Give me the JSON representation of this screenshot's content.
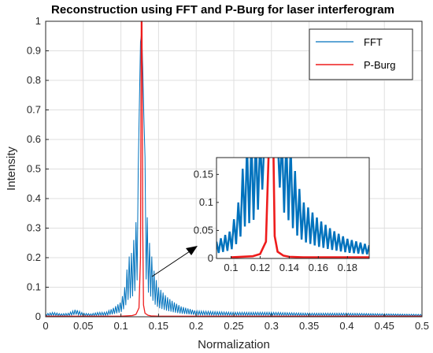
{
  "chart_data": {
    "type": "line",
    "title": "Reconstruction using FFT and P-Burg for laser interferogram",
    "xlabel": "Normalization",
    "ylabel": "Intensity",
    "xlim": [
      0,
      0.5
    ],
    "ylim": [
      0,
      1
    ],
    "xticks": [
      "0",
      "0.05",
      "0.1",
      "0.15",
      "0.2",
      "0.25",
      "0.3",
      "0.35",
      "0.4",
      "0.45",
      "0.5"
    ],
    "yticks": [
      "0",
      "0.1",
      "0.2",
      "0.3",
      "0.4",
      "0.5",
      "0.6",
      "0.7",
      "0.8",
      "0.9",
      "1"
    ],
    "grid": true,
    "legend_position": "top-right",
    "series": [
      {
        "name": "FFT",
        "color": "#0072BD",
        "x": [
          0,
          0.01,
          0.02,
          0.03,
          0.04,
          0.05,
          0.06,
          0.07,
          0.08,
          0.09,
          0.1,
          0.105,
          0.11,
          0.115,
          0.12,
          0.123,
          0.126,
          0.128,
          0.13,
          0.133,
          0.136,
          0.14,
          0.145,
          0.15,
          0.16,
          0.17,
          0.18,
          0.2,
          0.25,
          0.3,
          0.35,
          0.4,
          0.45,
          0.5
        ],
        "y": [
          0.01,
          0.015,
          0.01,
          0.012,
          0.025,
          0.012,
          0.01,
          0.015,
          0.015,
          0.03,
          0.05,
          0.1,
          0.2,
          0.22,
          0.32,
          0.5,
          0.93,
          0.97,
          0.72,
          0.45,
          0.28,
          0.22,
          0.14,
          0.1,
          0.07,
          0.05,
          0.035,
          0.02,
          0.015,
          0.015,
          0.012,
          0.012,
          0.01,
          0.008
        ]
      },
      {
        "name": "P-Burg",
        "color": "#EE1C1C",
        "x": [
          0,
          0.1,
          0.115,
          0.12,
          0.124,
          0.126,
          0.127,
          0.128,
          0.129,
          0.13,
          0.132,
          0.136,
          0.14,
          0.15,
          0.2,
          0.5
        ],
        "y": [
          0.002,
          0.002,
          0.004,
          0.008,
          0.03,
          0.2,
          1.0,
          1.0,
          0.3,
          0.04,
          0.012,
          0.005,
          0.003,
          0.002,
          0.002,
          0.002
        ]
      }
    ],
    "inset": {
      "xlim": [
        0.09,
        0.195
      ],
      "ylim": [
        0,
        0.18
      ],
      "xticks": [
        "0.1",
        "0.12",
        "0.14",
        "0.16",
        "0.18"
      ],
      "yticks": [
        "0",
        "0.05",
        "0.1",
        "0.15"
      ],
      "grid": false
    },
    "annotation": "arrow from the peak region to the zoomed inset"
  }
}
